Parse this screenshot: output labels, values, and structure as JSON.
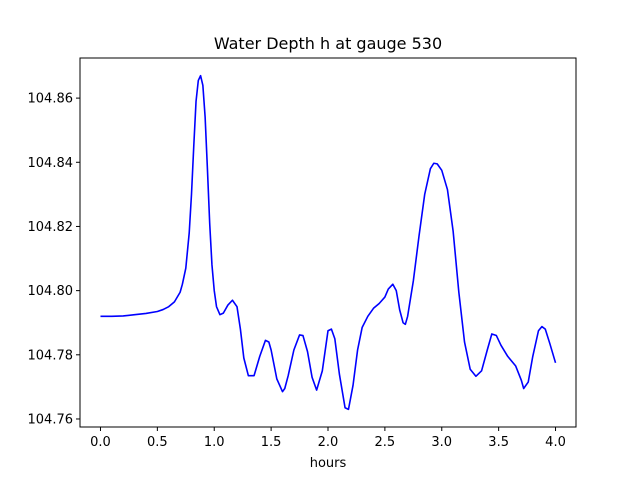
{
  "chart_data": {
    "type": "line",
    "title": "Water Depth h at gauge 530",
    "xlabel": "hours",
    "ylabel": "",
    "xlim": [
      -0.18,
      4.18
    ],
    "ylim": [
      104.7575,
      104.8725
    ],
    "xticks": [
      0.0,
      0.5,
      1.0,
      1.5,
      2.0,
      2.5,
      3.0,
      3.5,
      4.0
    ],
    "xtick_labels": [
      "0.0",
      "0.5",
      "1.0",
      "1.5",
      "2.0",
      "2.5",
      "3.0",
      "3.5",
      "4.0"
    ],
    "yticks": [
      104.76,
      104.78,
      104.8,
      104.82,
      104.84,
      104.86
    ],
    "ytick_labels": [
      "104.76",
      "104.78",
      "104.80",
      "104.82",
      "104.84",
      "104.86"
    ],
    "grid": false,
    "series": [
      {
        "color": "#0000ff",
        "x": [
          0.0,
          0.1,
          0.2,
          0.3,
          0.4,
          0.5,
          0.55,
          0.6,
          0.65,
          0.7,
          0.72,
          0.75,
          0.78,
          0.8,
          0.82,
          0.84,
          0.86,
          0.88,
          0.9,
          0.92,
          0.94,
          0.96,
          0.98,
          1.0,
          1.02,
          1.05,
          1.08,
          1.12,
          1.16,
          1.2,
          1.23,
          1.26,
          1.3,
          1.35,
          1.4,
          1.45,
          1.48,
          1.5,
          1.55,
          1.6,
          1.62,
          1.65,
          1.7,
          1.75,
          1.78,
          1.82,
          1.86,
          1.9,
          1.95,
          2.0,
          2.03,
          2.06,
          2.1,
          2.15,
          2.18,
          2.22,
          2.26,
          2.3,
          2.35,
          2.4,
          2.45,
          2.5,
          2.53,
          2.57,
          2.6,
          2.63,
          2.66,
          2.68,
          2.7,
          2.75,
          2.8,
          2.85,
          2.9,
          2.93,
          2.96,
          3.0,
          3.05,
          3.1,
          3.15,
          3.2,
          3.25,
          3.3,
          3.35,
          3.4,
          3.44,
          3.48,
          3.52,
          3.58,
          3.65,
          3.7,
          3.72,
          3.76,
          3.8,
          3.85,
          3.88,
          3.91,
          3.95,
          4.0
        ],
        "y": [
          104.792,
          104.792,
          104.7921,
          104.7925,
          104.7929,
          104.7935,
          104.7941,
          104.795,
          104.7965,
          104.7995,
          104.802,
          104.807,
          104.818,
          104.83,
          104.845,
          104.859,
          104.8655,
          104.867,
          104.864,
          104.854,
          104.838,
          104.821,
          104.808,
          104.8,
          104.795,
          104.7925,
          104.793,
          104.7955,
          104.797,
          104.795,
          104.788,
          104.779,
          104.7735,
          104.7735,
          104.7795,
          104.7845,
          104.784,
          104.7815,
          104.7725,
          104.7685,
          104.7695,
          104.7735,
          104.7815,
          104.7862,
          104.786,
          104.781,
          104.773,
          104.769,
          104.775,
          104.7875,
          104.788,
          104.785,
          104.774,
          104.7635,
          104.763,
          104.7705,
          104.7815,
          104.7885,
          104.792,
          104.7945,
          104.796,
          104.798,
          104.8005,
          104.802,
          104.8,
          104.794,
          104.79,
          104.7895,
          104.792,
          104.803,
          104.817,
          104.83,
          104.838,
          104.8397,
          104.8395,
          104.8375,
          104.8315,
          104.8185,
          104.7995,
          104.784,
          104.7755,
          104.7733,
          104.775,
          104.7815,
          104.7865,
          104.786,
          104.783,
          104.7795,
          104.7765,
          104.772,
          104.7695,
          104.7715,
          104.7795,
          104.7875,
          104.7888,
          104.788,
          104.7835,
          104.7775
        ]
      }
    ]
  }
}
